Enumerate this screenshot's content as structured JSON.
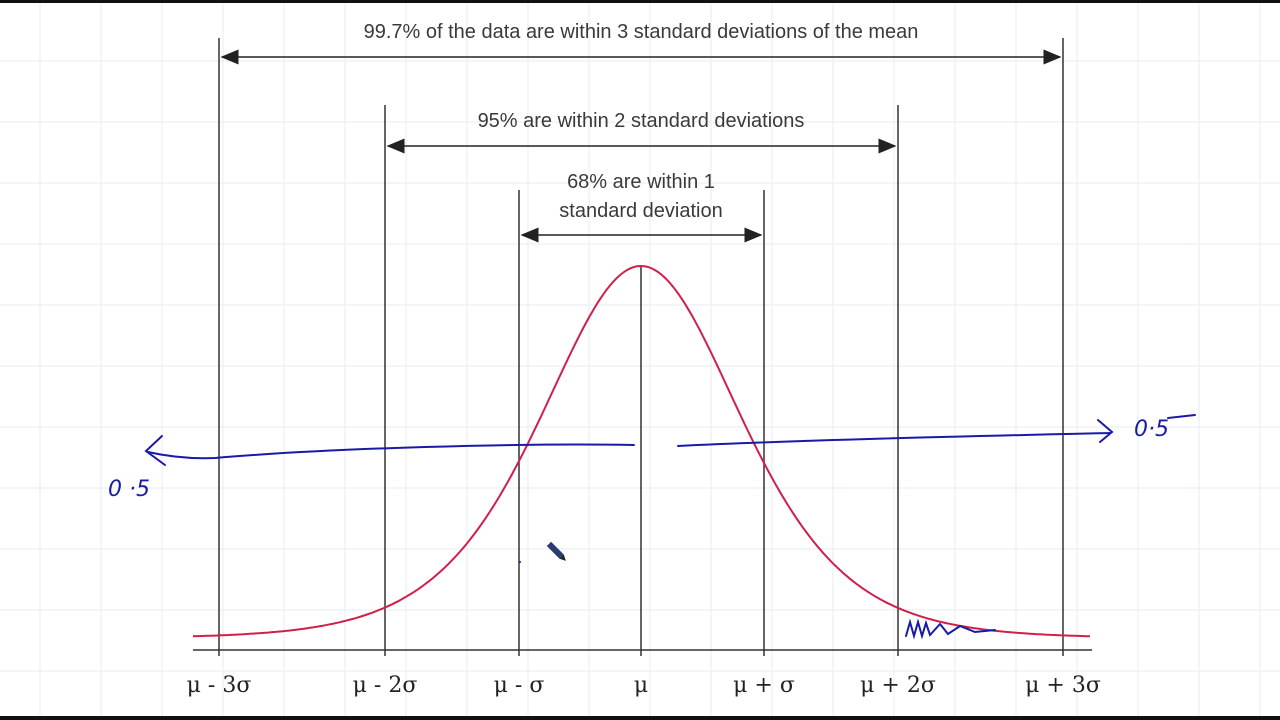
{
  "annotations": {
    "three_sd": "99.7% of the data are within 3 standard deviations of the mean",
    "two_sd": "95% are within 2 standard deviations",
    "one_sd": [
      "68% are within 1",
      "standard deviation"
    ]
  },
  "axis_labels": [
    "μ - 3σ",
    "μ - 2σ",
    "μ - σ",
    "μ",
    "μ + σ",
    "μ + 2σ",
    "μ + 3σ"
  ],
  "handwritten": {
    "left": "0 ·5",
    "right": "0·5"
  }
}
